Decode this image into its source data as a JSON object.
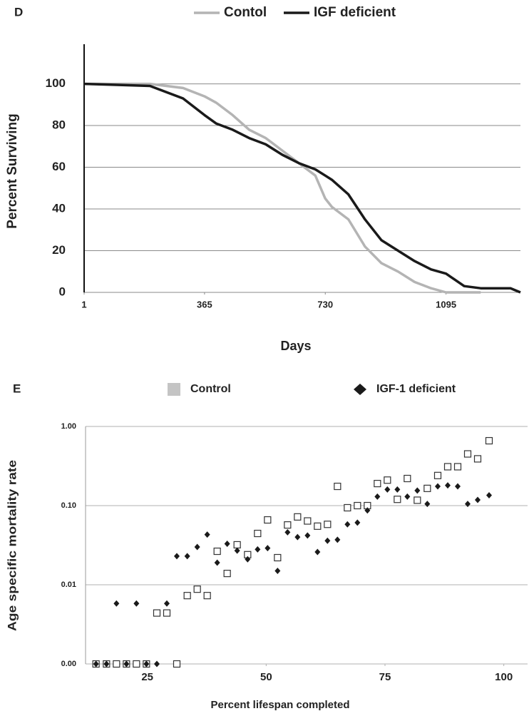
{
  "chart_data": [
    {
      "type": "line",
      "panel_label": "D",
      "xlabel": "Days",
      "ylabel": "Percent Surviving",
      "x": [
        1,
        100,
        200,
        300,
        365,
        400,
        450,
        500,
        550,
        600,
        650,
        700,
        730,
        750,
        800,
        850,
        900,
        950,
        1000,
        1050,
        1095,
        1150,
        1200,
        1250,
        1290,
        1320
      ],
      "series": [
        {
          "name": "Contol",
          "color": "#b4b4b4",
          "values": [
            100,
            100,
            100,
            98,
            94,
            91,
            85,
            78,
            74,
            68,
            62,
            56,
            45,
            41,
            35,
            22,
            14,
            10,
            5,
            2,
            0,
            0,
            0,
            null,
            null,
            null
          ]
        },
        {
          "name": "IGF deficient",
          "color": "#1a1a1a",
          "values": [
            100,
            99.5,
            99,
            93,
            85,
            81,
            78,
            74,
            71,
            66,
            62,
            59,
            56,
            54,
            47,
            35,
            25,
            20,
            15,
            11,
            9,
            3,
            2,
            2,
            2,
            0
          ]
        }
      ],
      "xlim": [
        1,
        1320
      ],
      "xticks": [
        1,
        365,
        730,
        1095
      ],
      "ylim": [
        0,
        119
      ],
      "yticks": [
        0,
        20,
        40,
        60,
        80,
        100
      ],
      "grid": true
    },
    {
      "type": "scatter",
      "panel_label": "E",
      "xlabel": "Percent lifespan completed",
      "ylabel": "Age specific mortality rate",
      "x": [
        14.2,
        16.4,
        18.5,
        20.6,
        22.7,
        24.8,
        27.0,
        29.1,
        31.2,
        33.4,
        35.5,
        37.6,
        39.7,
        41.8,
        43.9,
        46.1,
        48.2,
        50.3,
        52.4,
        54.5,
        56.6,
        58.7,
        60.8,
        62.9,
        65.0,
        67.1,
        69.2,
        71.3,
        73.4,
        75.5,
        77.6,
        79.7,
        81.8,
        83.9,
        86.1,
        88.2,
        90.3,
        92.4,
        94.5,
        96.9
      ],
      "series": [
        {
          "name": "Control",
          "color": "#c4c4c4",
          "edgecolor": "#333333",
          "marker": "square",
          "values": [
            0.001,
            0.001,
            0.001,
            0.001,
            0.001,
            0.001,
            0.0044,
            0.0044,
            0.001,
            0.0073,
            0.0088,
            0.0073,
            0.0265,
            0.0139,
            0.032,
            0.024,
            0.0445,
            0.066,
            0.022,
            0.057,
            0.072,
            0.064,
            0.055,
            0.058,
            0.175,
            0.094,
            0.1,
            0.1,
            0.19,
            0.21,
            0.12,
            0.22,
            0.117,
            0.165,
            0.24,
            0.31,
            0.31,
            0.45,
            0.39,
            0.66
          ]
        },
        {
          "name": "IGF-1 deficient",
          "color": "#1a1a1a",
          "marker": "diamond",
          "values": [
            0.001,
            0.001,
            0.0058,
            0.001,
            0.0058,
            0.001,
            0.001,
            0.0058,
            0.023,
            0.023,
            0.03,
            0.043,
            0.019,
            0.033,
            0.027,
            0.021,
            0.028,
            0.029,
            0.015,
            0.046,
            0.04,
            0.042,
            0.026,
            0.036,
            0.037,
            0.058,
            0.061,
            0.087,
            0.13,
            0.16,
            0.16,
            0.13,
            0.155,
            0.105,
            0.175,
            0.18,
            0.175,
            0.105,
            0.118,
            0.135
          ]
        }
      ],
      "xlim": [
        12,
        105
      ],
      "xticks": [
        25,
        50,
        75,
        100
      ],
      "yscale": "log",
      "ylim": [
        0.001,
        1
      ],
      "yticks": [
        {
          "value": 0.001,
          "label": "0.00"
        },
        {
          "value": 0.01,
          "label": "0.01"
        },
        {
          "value": 0.1,
          "label": "0.10"
        },
        {
          "value": 1,
          "label": "1.00"
        }
      ],
      "grid": true
    }
  ]
}
